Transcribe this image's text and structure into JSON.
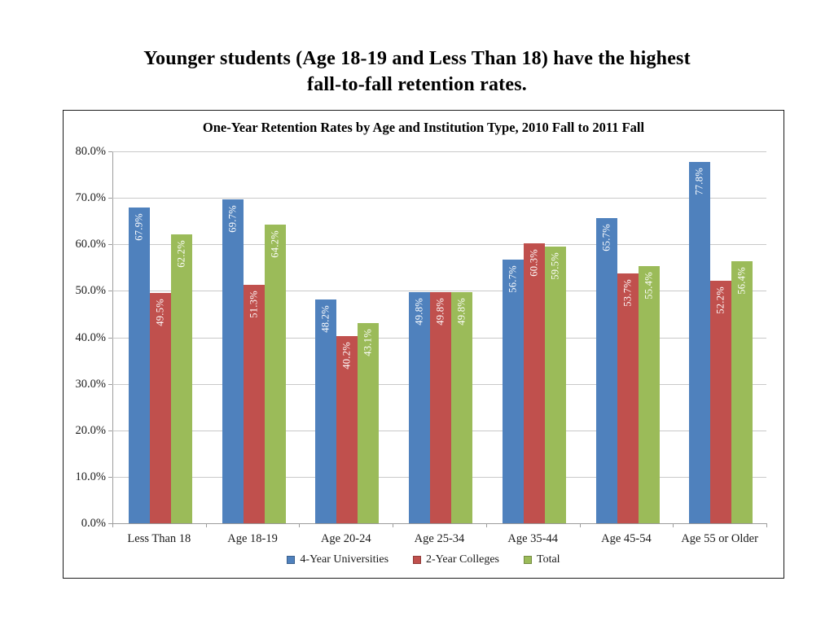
{
  "slide": {
    "title_line1": "Younger students (Age 18-19 and Less Than 18) have the highest",
    "title_line2": "fall-to-fall retention rates."
  },
  "chart_data": {
    "type": "bar",
    "title": "One-Year Retention Rates by Age and Institution Type, 2010 Fall to 2011 Fall",
    "categories": [
      "Less Than 18",
      "Age 18-19",
      "Age 20-24",
      "Age 25-34",
      "Age 35-44",
      "Age 45-54",
      "Age 55 or Older"
    ],
    "series": [
      {
        "name": "4-Year Universities",
        "color": "#4F81BD",
        "values": [
          67.9,
          69.7,
          48.2,
          49.8,
          56.7,
          65.7,
          77.8
        ]
      },
      {
        "name": "2-Year Colleges",
        "color": "#C0504D",
        "values": [
          49.5,
          51.3,
          40.2,
          49.8,
          60.3,
          53.7,
          52.2
        ]
      },
      {
        "name": "Total",
        "color": "#9BBB59",
        "values": [
          62.2,
          64.2,
          43.1,
          49.8,
          59.5,
          55.4,
          56.4
        ]
      }
    ],
    "data_labels": [
      [
        "67.9%",
        "69.7%",
        "48.2%",
        "49.8%",
        "56.7%",
        "65.7%",
        "77.8%"
      ],
      [
        "49.5%",
        "51.3%",
        "40.2%",
        "49.8%",
        "60.3%",
        "53.7%",
        "52.2%"
      ],
      [
        "62.2%",
        "64.2%",
        "43.1%",
        "49.8%",
        "59.5%",
        "55.4%",
        "56.4%"
      ]
    ],
    "y_axis": {
      "min": 0,
      "max": 80,
      "step": 10,
      "tick_labels": [
        "0.0%",
        "10.0%",
        "20.0%",
        "30.0%",
        "40.0%",
        "50.0%",
        "60.0%",
        "70.0%",
        "80.0%"
      ]
    },
    "grid": true,
    "legend_position": "bottom",
    "colors": {
      "gridline": "#c9c9c9",
      "axis": "#9c9c9c",
      "data_label_text": "#ffffff",
      "chart_border": "#1c1c1c"
    }
  }
}
